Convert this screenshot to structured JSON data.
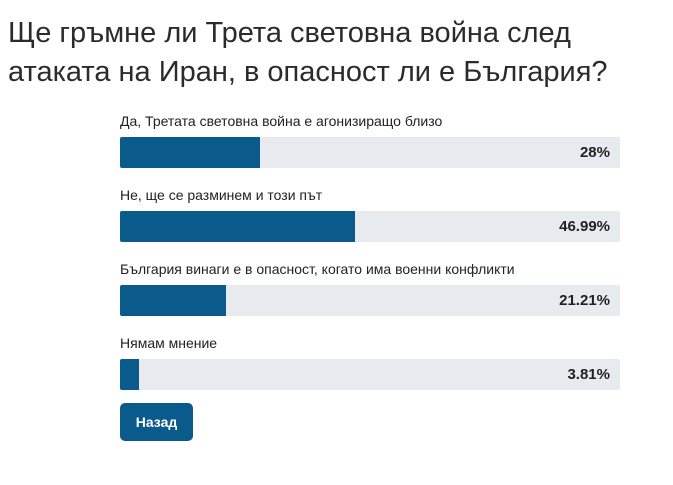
{
  "poll": {
    "title": "Ще гръмне ли Трета световна война след атаката на Иран, в опасност ли е България?",
    "options": [
      {
        "label": "Да, Третата световна война е агонизиращо близо",
        "percent_text": "28%",
        "percent": 28
      },
      {
        "label": "Не, ще се разминем и този път",
        "percent_text": "46.99%",
        "percent": 46.99
      },
      {
        "label": "България винаги е в опасност, когато има военни конфликти",
        "percent_text": "21.21%",
        "percent": 21.21
      },
      {
        "label": "Нямам мнение",
        "percent_text": "3.81%",
        "percent": 3.81
      }
    ],
    "back_label": "Назад"
  },
  "colors": {
    "bar_fill": "#0a5a8c",
    "bar_track": "#e7eaee",
    "button_bg": "#0a5a8c",
    "button_text": "#ffffff"
  }
}
